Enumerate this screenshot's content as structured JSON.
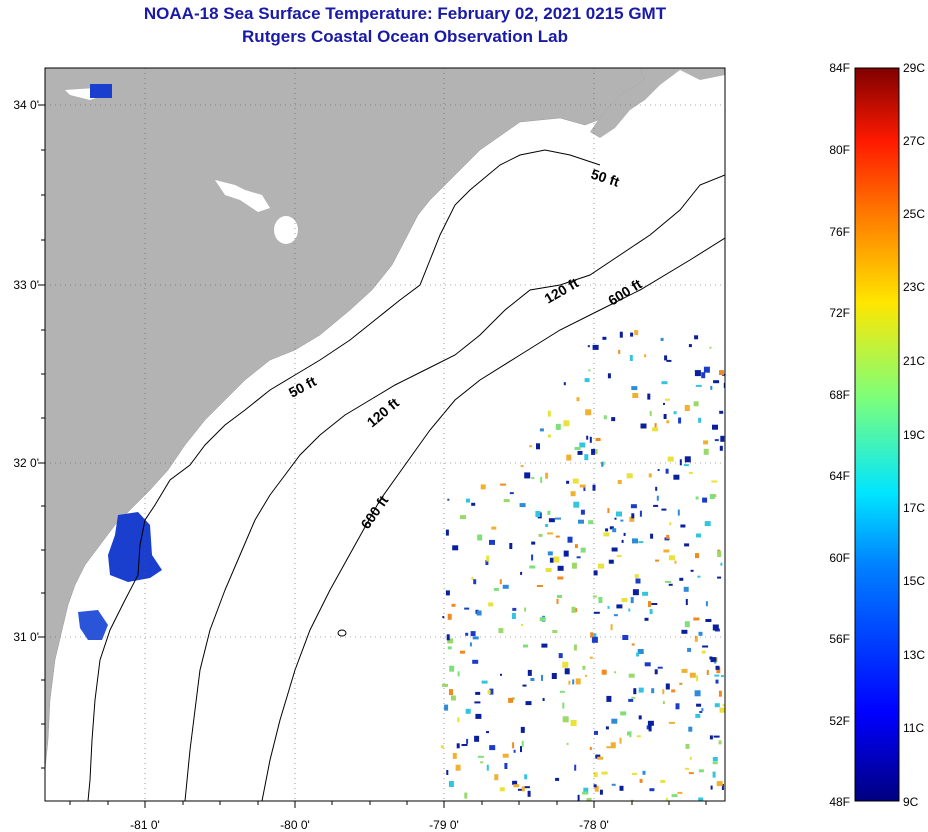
{
  "header": {
    "title": "NOAA-18 Sea Surface Temperature:  February 02, 2021 0215 GMT",
    "subtitle": "Rutgers Coastal Ocean Observation Lab"
  },
  "axes": {
    "lat_ticks": [
      "34 0'",
      "33 0'",
      "32 0'",
      "31 0'"
    ],
    "lon_ticks": [
      "-81 0'",
      "-80 0'",
      "-79 0'",
      "-78 0'"
    ]
  },
  "contours": [
    "50 ft",
    "50 ft",
    "120 ft",
    "120 ft",
    "600 ft",
    "600 ft"
  ],
  "colorbar": {
    "f_labels": [
      "84F",
      "80F",
      "76F",
      "72F",
      "68F",
      "64F",
      "60F",
      "56F",
      "52F",
      "48F"
    ],
    "c_labels": [
      "29C",
      "27C",
      "25C",
      "23C",
      "21C",
      "19C",
      "17C",
      "15C",
      "13C",
      "11C",
      "9C"
    ]
  },
  "colors": {
    "land": "#b3b3b3",
    "title": "#1a1aa8",
    "cold": "#0a22b4"
  }
}
